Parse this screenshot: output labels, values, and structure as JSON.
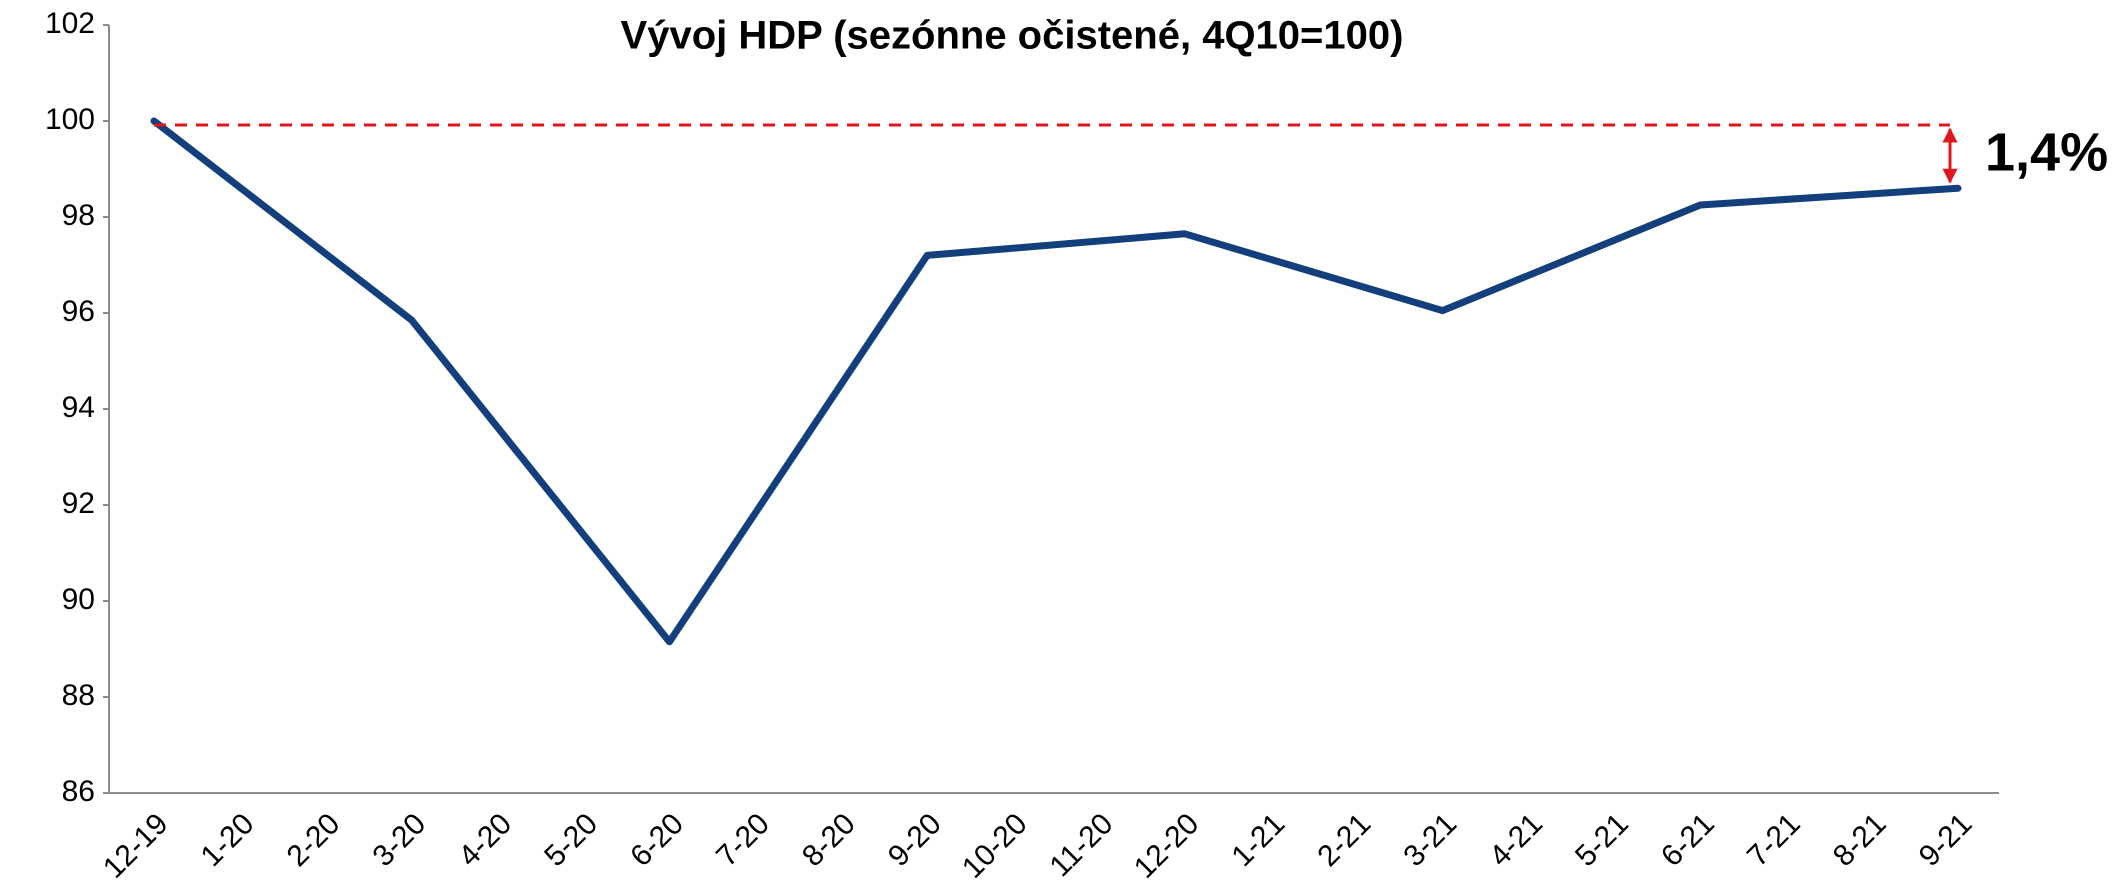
{
  "chart_data": {
    "type": "line",
    "title": "Vývoj HDP (sezónne očistené, 4Q10=100)",
    "categories": [
      "12-19",
      "1-20",
      "2-20",
      "3-20",
      "4-20",
      "5-20",
      "6-20",
      "7-20",
      "8-20",
      "9-20",
      "10-20",
      "11-20",
      "12-20",
      "1-21",
      "2-21",
      "3-21",
      "4-21",
      "5-21",
      "6-21",
      "7-21",
      "8-21",
      "9-21"
    ],
    "series": [
      {
        "name": "HDP",
        "color": "#133f7c",
        "x": [
          "12-19",
          "3-20",
          "6-20",
          "9-20",
          "12-20",
          "3-21",
          "6-21",
          "9-21"
        ],
        "values": [
          100,
          95.85,
          89.15,
          97.2,
          97.65,
          96.05,
          98.25,
          98.6
        ]
      }
    ],
    "ylim": [
      86,
      102
    ],
    "yticks": [
      86,
      88,
      90,
      92,
      94,
      96,
      98,
      100,
      102
    ],
    "grid": false,
    "annotation": {
      "text": "1,4%",
      "color": "#e0161e"
    }
  }
}
